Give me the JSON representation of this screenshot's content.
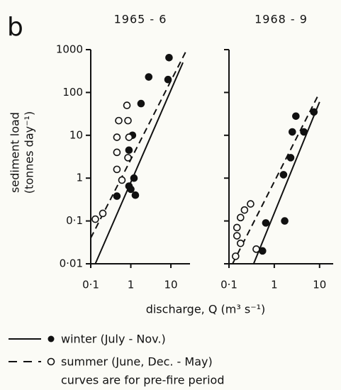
{
  "panel_label": "b",
  "xlabel": "discharge, Q (m³ s⁻¹)",
  "ylabel": [
    "sediment load",
    "(tonnes day⁻¹)"
  ],
  "note": "curves are for pre-fire period",
  "chart_data": [
    {
      "type": "scatter",
      "title": "1965 - 6",
      "log_x": true,
      "log_y": true,
      "show_ytick_labels": true,
      "xlim": [
        0.1,
        30
      ],
      "ylim": [
        0.01,
        1000
      ],
      "xticks": [
        {
          "value": 0.1,
          "label": "0·1"
        },
        1,
        10
      ],
      "yticks": [
        {
          "value": 0.01,
          "label": "0·01"
        },
        {
          "value": 0.1,
          "label": "0·1"
        },
        1,
        10,
        100,
        1000
      ],
      "series": [
        {
          "name": "winter (July - Nov.)",
          "marker": "filled",
          "color": "#111111",
          "x": [
            9,
            8.5,
            2.8,
            1.8,
            1.1,
            0.9,
            1.2,
            0.9,
            1.3,
            0.45,
            1
          ],
          "y": [
            650,
            200,
            230,
            55,
            10,
            4.5,
            1.0,
            0.65,
            0.4,
            0.38,
            0.55
          ]
        },
        {
          "name": "summer (June, Dec. - May)",
          "marker": "open",
          "color": "#111111",
          "x": [
            0.13,
            0.2,
            0.45,
            0.45,
            0.45,
            0.5,
            0.8,
            0.85,
            0.6,
            0.85,
            0.9
          ],
          "y": [
            0.11,
            0.15,
            1.6,
            4,
            9,
            22,
            50,
            22,
            0.9,
            3,
            9
          ]
        }
      ],
      "lines": [
        {
          "style": "solid",
          "x": [
            0.13,
            20
          ],
          "y": [
            0.01,
            500
          ]
        },
        {
          "style": "dashed",
          "x": [
            0.1,
            25
          ],
          "y": [
            0.04,
            1000
          ]
        }
      ]
    },
    {
      "type": "scatter",
      "title": "1968 - 9",
      "log_x": true,
      "log_y": true,
      "show_ytick_labels": false,
      "xlim": [
        0.1,
        20
      ],
      "ylim": [
        0.01,
        1000
      ],
      "xticks": [
        {
          "value": 0.1,
          "label": "0·1"
        },
        1,
        10
      ],
      "yticks": [
        0.01,
        0.1,
        1,
        10,
        100,
        1000
      ],
      "series": [
        {
          "marker": "filled",
          "color": "#111111",
          "x": [
            3,
            4.5,
            7.5,
            2.5,
            2.3,
            1.6,
            0.65,
            1.7,
            0.55
          ],
          "y": [
            28,
            12,
            35,
            12,
            3,
            1.2,
            0.09,
            0.1,
            0.02
          ]
        },
        {
          "marker": "open",
          "color": "#111111",
          "x": [
            0.15,
            0.18,
            0.22,
            0.3,
            0.15,
            0.18,
            0.14,
            0.4
          ],
          "y": [
            0.07,
            0.12,
            0.18,
            0.25,
            0.045,
            0.03,
            0.015,
            0.022
          ]
        }
      ],
      "lines": [
        {
          "style": "solid",
          "x": [
            0.35,
            10
          ],
          "y": [
            0.01,
            60
          ]
        },
        {
          "style": "dashed",
          "x": [
            0.12,
            9
          ],
          "y": [
            0.01,
            80
          ]
        }
      ]
    }
  ]
}
